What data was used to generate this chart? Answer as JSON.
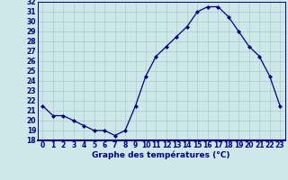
{
  "hours": [
    0,
    1,
    2,
    3,
    4,
    5,
    6,
    7,
    8,
    9,
    10,
    11,
    12,
    13,
    14,
    15,
    16,
    17,
    18,
    19,
    20,
    21,
    22,
    23
  ],
  "temperatures": [
    21.5,
    20.5,
    20.5,
    20.0,
    19.5,
    19.0,
    19.0,
    18.5,
    19.0,
    21.5,
    24.5,
    26.5,
    27.5,
    28.5,
    29.5,
    31.0,
    31.5,
    31.5,
    30.5,
    29.0,
    27.5,
    26.5,
    24.5,
    21.5
  ],
  "ylim": [
    18,
    32
  ],
  "yticks": [
    18,
    19,
    20,
    21,
    22,
    23,
    24,
    25,
    26,
    27,
    28,
    29,
    30,
    31,
    32
  ],
  "xticks": [
    0,
    1,
    2,
    3,
    4,
    5,
    6,
    7,
    8,
    9,
    10,
    11,
    12,
    13,
    14,
    15,
    16,
    17,
    18,
    19,
    20,
    21,
    22,
    23
  ],
  "xlabel": "Graphe des températures (°C)",
  "line_color": "#00008b",
  "marker_color": "#00008b",
  "bg_color": "#cce8e8",
  "grid_color": "#aacccc",
  "axis_color": "#00008b",
  "tick_fontsize": 5.5,
  "xlabel_fontsize": 6.5
}
